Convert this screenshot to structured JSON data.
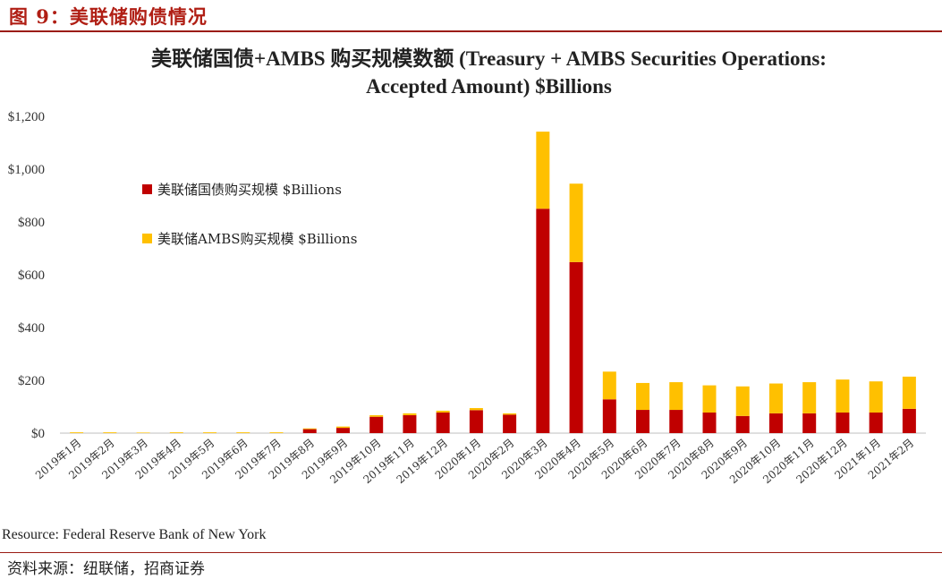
{
  "figure": {
    "title": "图 9：美联储购债情况",
    "resource_note": "Resource: Federal Reserve Bank of New York",
    "source": "资料来源：纽联储，招商证券",
    "rule_color": "#9b1c14",
    "title_color": "#b01e14"
  },
  "chart_data": {
    "type": "bar",
    "stacked": true,
    "title_line1": "美联储国债+AMBS 购买规模数额 (Treasury + AMBS Securities Operations:",
    "title_line2": "Accepted Amount) $Billions",
    "xlabel": "",
    "ylabel": "",
    "ylim": [
      0,
      1200
    ],
    "yticks": [
      0,
      200,
      400,
      600,
      800,
      1000,
      1200
    ],
    "ytick_labels": [
      "$0",
      "$200",
      "$400",
      "$600",
      "$800",
      "$1,000",
      "$1,200"
    ],
    "grid": false,
    "legend_position": "upper-left",
    "categories": [
      "2019年1月",
      "2019年2月",
      "2019年3月",
      "2019年4月",
      "2019年5月",
      "2019年6月",
      "2019年7月",
      "2019年8月",
      "2019年9月",
      "2019年10月",
      "2019年11月",
      "2019年12月",
      "2020年1月",
      "2020年2月",
      "2020年3月",
      "2020年4月",
      "2020年5月",
      "2020年6月",
      "2020年7月",
      "2020年8月",
      "2020年9月",
      "2020年10月",
      "2020年11月",
      "2020年12月",
      "2021年1月",
      "2021年2月"
    ],
    "series": [
      {
        "name": "美联储国债购买规模 $Billions",
        "color": "#c00000",
        "values": [
          0,
          0,
          0,
          0,
          0,
          0,
          0,
          15,
          20,
          62,
          68,
          78,
          87,
          70,
          850,
          648,
          128,
          88,
          88,
          78,
          65,
          75,
          75,
          78,
          78,
          92
        ]
      },
      {
        "name": "美联储AMBS购买规模 $Billions",
        "color": "#ffc000",
        "values": [
          3,
          3,
          2,
          3,
          3,
          3,
          3,
          3,
          5,
          6,
          7,
          7,
          8,
          5,
          292,
          297,
          105,
          102,
          105,
          103,
          112,
          113,
          118,
          125,
          118,
          122
        ]
      }
    ]
  }
}
